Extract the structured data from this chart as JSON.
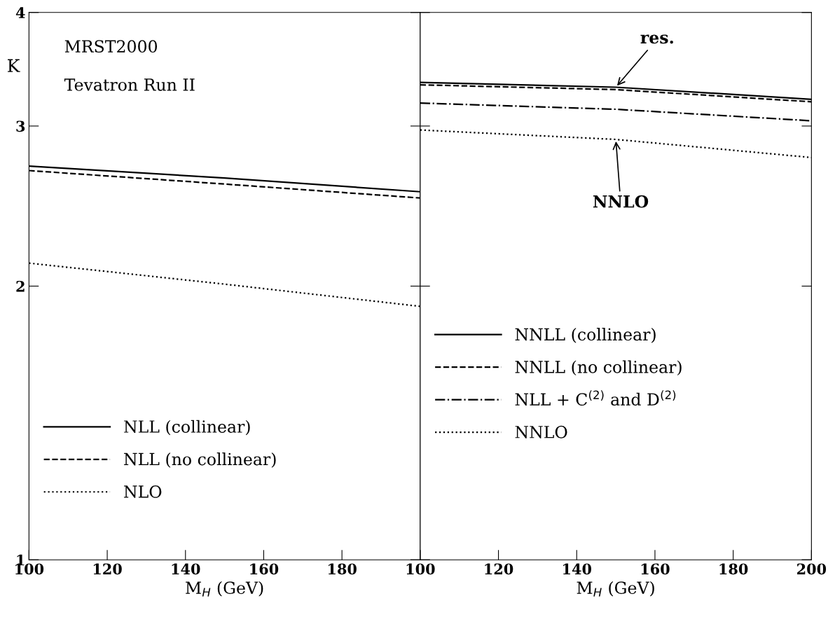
{
  "chart_data": [
    {
      "type": "line",
      "xlabel": "M$_{H}$ (GeV)",
      "ylabel": "K",
      "log": "y",
      "xlim": [
        100,
        200
      ],
      "ylim": [
        1,
        4
      ],
      "xticks": [
        100,
        120,
        140,
        160,
        180,
        {
          "value": 200,
          "label": null
        }
      ],
      "yticks": [
        1,
        2,
        3,
        4
      ],
      "legend": "bottom left",
      "grid": false,
      "annotations": [
        "MRST2000",
        "Tevatron Run II"
      ],
      "series": [
        {
          "name": "NLL (collinear)",
          "color": "#000000",
          "line_style": "solid",
          "x": [
            100,
            150,
            200
          ],
          "values": [
            2.71,
            2.63,
            2.54
          ]
        },
        {
          "name": "NLL (no collinear)",
          "color": "#000000",
          "line_style": "dashed",
          "x": [
            100,
            150,
            200
          ],
          "values": [
            2.68,
            2.59,
            2.5
          ]
        },
        {
          "name": "NLO",
          "color": "#000000",
          "line_style": "dotted",
          "x": [
            100,
            150,
            200
          ],
          "values": [
            2.12,
            2.01,
            1.9
          ]
        }
      ]
    },
    {
      "type": "line",
      "xlabel": "M$_{H}$ (GeV)",
      "log": "y",
      "xlim": [
        100,
        200
      ],
      "ylim": [
        1,
        4
      ],
      "xticks": [
        100,
        120,
        140,
        160,
        180,
        200
      ],
      "yticks": [
        1,
        2,
        3,
        4
      ],
      "tick_labels": "x",
      "legend": "left",
      "grid": false,
      "annotations": [
        {
          "text": "res.",
          "x": 150,
          "y": 3.31
        },
        {
          "text": "NNLO",
          "x": 150,
          "y": 2.9
        }
      ],
      "series": [
        {
          "name": "NNLL (collinear)",
          "color": "#000000",
          "line_style": "solid",
          "x": [
            100,
            150,
            200
          ],
          "values": [
            3.35,
            3.31,
            3.21
          ]
        },
        {
          "name": "NNLL (no collinear)",
          "color": "#000000",
          "line_style": "dashed",
          "x": [
            100,
            150,
            200
          ],
          "values": [
            3.33,
            3.29,
            3.19
          ]
        },
        {
          "name": "NLL + C$^{(2)}$ and D$^{(2)}$",
          "color": "#000000",
          "line_style": "dashdot",
          "x": [
            100,
            150,
            200
          ],
          "values": [
            3.18,
            3.13,
            3.04
          ]
        },
        {
          "name": "NNLO",
          "color": "#000000",
          "line_style": "dotted",
          "x": [
            100,
            150,
            200
          ],
          "values": [
            2.97,
            2.9,
            2.77
          ]
        }
      ]
    }
  ]
}
